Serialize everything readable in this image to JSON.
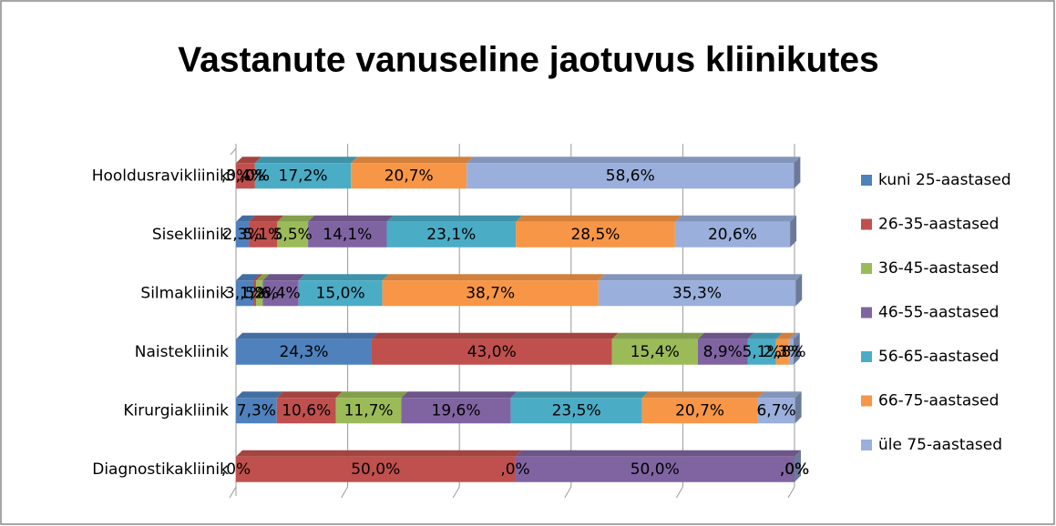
{
  "chart_data": {
    "type": "stacked-bar-100",
    "orientation": "horizontal",
    "title": "Vastanute vanuseline jaotuvus kliinikutes",
    "categories": [
      "Hooldusravikliinik",
      "Sisekliinik",
      "Silmakliinik",
      "Naistekliinik",
      "Kirurgiakliinik",
      "Diagnostikakliinik"
    ],
    "xlim": [
      0,
      100
    ],
    "xticks": [
      0,
      20,
      40,
      60,
      80,
      100
    ],
    "grid": true,
    "legend": "right",
    "series": [
      {
        "name": "kuni 25-aastased",
        "color": "#4f81bd",
        "values": [
          0,
          2.3,
          3.1,
          24.3,
          7.3,
          0
        ],
        "value_labels": [
          ",0%",
          "2,3%",
          "3,1%",
          "24,3%",
          "7,3%",
          ",0%"
        ]
      },
      {
        "name": "26-35-aastased",
        "color": "#c0504d",
        "values": [
          3.4,
          5.1,
          0.5,
          43.0,
          10.6,
          50.0
        ],
        "value_labels": [
          "3,4%",
          "5,1%",
          ",5%",
          "43,0%",
          "10,6%",
          "50,0%"
        ]
      },
      {
        "name": "36-45-aastased",
        "color": "#9bbb59",
        "values": [
          0,
          5.5,
          1.2,
          15.4,
          11.7,
          0
        ],
        "value_labels": [
          ",0%",
          "5,5%",
          "1,2%",
          "15,4%",
          "11,7%",
          ",0%"
        ]
      },
      {
        "name": "46-55-aastased",
        "color": "#8064a2",
        "values": [
          0,
          14.1,
          6.4,
          8.9,
          19.6,
          50.0
        ],
        "value_labels": [
          ",0%",
          "14,1%",
          "6,4%",
          "8,9%",
          "19,6%",
          "50,0%"
        ]
      },
      {
        "name": "56-65-aastased",
        "color": "#4bacc6",
        "values": [
          17.2,
          23.1,
          15.0,
          5.1,
          23.5,
          0
        ],
        "value_labels": [
          "17,2%",
          "23,1%",
          "15,0%",
          "5,1%",
          "23,5%",
          ",0%"
        ]
      },
      {
        "name": "66-75-aastased",
        "color": "#f79646",
        "values": [
          20.7,
          28.5,
          38.7,
          2.3,
          20.7,
          0
        ],
        "value_labels": [
          "20,7%",
          "28,5%",
          "38,7%",
          "2,3%",
          "20,7%",
          ",0%"
        ]
      },
      {
        "name": "üle 75-aastased",
        "color": "#9aafdb",
        "values": [
          58.6,
          20.6,
          35.3,
          0.8,
          6.7,
          0
        ],
        "value_labels": [
          "58,6%",
          "20,6%",
          "35,3%",
          ",8%",
          "6,7%",
          ",0%"
        ]
      }
    ]
  }
}
